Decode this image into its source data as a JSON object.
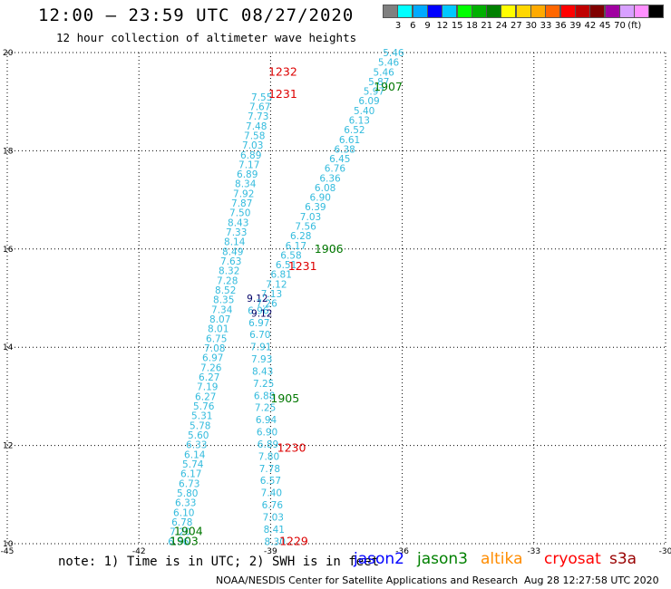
{
  "header": {
    "title": "12:00 – 23:59 UTC 08/27/2020",
    "subtitle": "12 hour collection of altimeter wave heights"
  },
  "legend": {
    "colors": [
      "#808080",
      "#00ffff",
      "#00aaff",
      "#0000ff",
      "#00c8ff",
      "#00ff00",
      "#00b000",
      "#008000",
      "#ffff00",
      "#ffd700",
      "#ffaa00",
      "#ff6600",
      "#ff0000",
      "#c00000",
      "#800000",
      "#a000a0",
      "#d8a0ff",
      "#ff90ff",
      "#000000"
    ],
    "labels": [
      "3",
      "6",
      "9",
      "12",
      "15",
      "18",
      "21",
      "24",
      "27",
      "30",
      "33",
      "36",
      "39",
      "42",
      "45",
      "70",
      "(ft)"
    ]
  },
  "axes": {
    "x_ticks": [
      "-45",
      "-42",
      "-39",
      "-36",
      "-33",
      "-30"
    ],
    "y_ticks": [
      "10",
      "12",
      "14",
      "16",
      "18",
      "20"
    ]
  },
  "points_color": "#33bbdd",
  "tracks": [
    {
      "name": "track-west",
      "lon_start": -41.1,
      "lon_end": -39.2,
      "lat_start": 10.05,
      "lat_end": 19.1,
      "values": [
        "6.56",
        "7.20",
        "6.78",
        "6.10",
        "6.33",
        "5.80",
        "6.73",
        "6.17",
        "5.74",
        "6.14",
        "6.33",
        "5.60",
        "5.78",
        "5.31",
        "5.76",
        "6.27",
        "7.19",
        "6.27",
        "7.26",
        "6.97",
        "7.08",
        "6.75",
        "8.01",
        "8.07",
        "7.34",
        "8.35",
        "8.52",
        "7.28",
        "8.32",
        "7.63",
        "8.49",
        "8.14",
        "7.33",
        "8.43",
        "7.50",
        "7.87",
        "7.92",
        "8.34",
        "6.89",
        "7.17",
        "6.89",
        "7.03",
        "7.58",
        "7.48",
        "7.73",
        "7.67",
        "7.55"
      ]
    },
    {
      "name": "track-mid",
      "lon_start": -38.9,
      "lon_end": -39.3,
      "lat_start": 10.05,
      "lat_end": 15.0,
      "values": [
        "8.30",
        "8.41",
        "7.03",
        "6.76",
        "7.40",
        "6.57",
        "7.78",
        "7.80",
        "6.89",
        "6.90",
        "6.94",
        "7.25",
        "6.88",
        "7.25",
        "8.43",
        "7.93",
        "7.91",
        "6.70",
        "6.97",
        "6.96",
        "9.12"
      ]
    },
    {
      "name": "track-east",
      "lon_start": -39.2,
      "lon_end": -36.2,
      "lat_start": 14.7,
      "lat_end": 20.0,
      "values": [
        "9.12",
        "7.26",
        "7.13",
        "7.12",
        "6.81",
        "6.51",
        "6.58",
        "6.17",
        "6.28",
        "7.56",
        "7.03",
        "6.39",
        "6.90",
        "6.08",
        "6.36",
        "6.76",
        "6.45",
        "6.38",
        "6.61",
        "6.52",
        "6.13",
        "5.40",
        "6.09",
        "5.97",
        "5.87",
        "5.46",
        "5.46",
        "5.46"
      ]
    }
  ],
  "time_labels": [
    {
      "text": "1229",
      "color": "#dd0000",
      "lon": -38.8,
      "lat": 10.05
    },
    {
      "text": "1230",
      "color": "#dd0000",
      "lon": -38.85,
      "lat": 11.95
    },
    {
      "text": "1231",
      "color": "#dd0000",
      "lon": -38.6,
      "lat": 15.65
    },
    {
      "text": "1231",
      "color": "#dd0000",
      "lon": -39.05,
      "lat": 19.15
    },
    {
      "text": "1232",
      "color": "#dd0000",
      "lon": -39.05,
      "lat": 19.6
    },
    {
      "text": "1903",
      "color": "#007700",
      "lon": -41.3,
      "lat": 10.05
    },
    {
      "text": "1904",
      "color": "#007700",
      "lon": -41.2,
      "lat": 10.25
    },
    {
      "text": "1905",
      "color": "#007700",
      "lon": -39.0,
      "lat": 12.95
    },
    {
      "text": "1906",
      "color": "#007700",
      "lon": -38.0,
      "lat": 16.0
    },
    {
      "text": "1907",
      "color": "#007700",
      "lon": -36.65,
      "lat": 19.3
    }
  ],
  "footer": {
    "note": "note: 1) Time is in UTC; 2) SWH is in feet",
    "missions": [
      {
        "name": "jason2",
        "color": "#0000ff"
      },
      {
        "name": "jason3",
        "color": "#008000"
      },
      {
        "name": "altika",
        "color": "#ff8c00"
      },
      {
        "name": "cryosat",
        "color": "#ff0000"
      },
      {
        "name": "s3a",
        "color": "#990000"
      }
    ],
    "credit": "NOAA/NESDIS Center for Satellite Applications and Research",
    "timestamp": "Aug 28 12:27:58 UTC 2020"
  }
}
